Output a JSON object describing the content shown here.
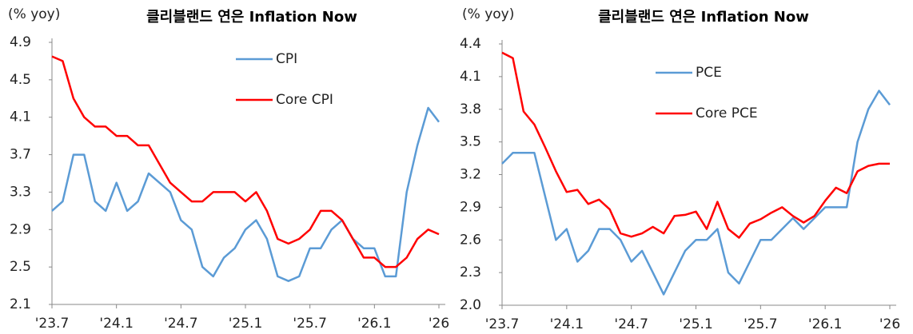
{
  "chart_data": [
    {
      "type": "line",
      "title": "클리블랜드 연은 Inflation Now",
      "y_label": "(% yoy)",
      "categories": [
        "'23.7",
        null,
        null,
        null,
        null,
        null,
        "'24.1",
        null,
        null,
        null,
        null,
        null,
        "'24.7",
        null,
        null,
        null,
        null,
        null,
        "'25.1",
        null,
        null,
        null,
        null,
        null,
        "'25.7",
        null,
        null,
        null,
        null,
        null,
        "'26.1",
        null,
        null,
        null,
        null,
        null,
        "'26"
      ],
      "series": [
        {
          "name": "CPI",
          "color": "#5b9bd5",
          "values": [
            3.1,
            3.2,
            3.7,
            3.7,
            3.2,
            3.1,
            3.4,
            3.1,
            3.2,
            3.5,
            3.4,
            3.3,
            3.0,
            2.9,
            2.5,
            2.4,
            2.6,
            2.7,
            2.9,
            3.0,
            2.8,
            2.4,
            2.35,
            2.4,
            2.7,
            2.7,
            2.9,
            3.0,
            2.8,
            2.7,
            2.7,
            2.4,
            2.4,
            3.3,
            3.8,
            4.2,
            4.05
          ]
        },
        {
          "name": "Core CPI",
          "color": "#ff0000",
          "values": [
            4.75,
            4.7,
            4.3,
            4.1,
            4.0,
            4.0,
            3.9,
            3.9,
            3.8,
            3.8,
            3.6,
            3.4,
            3.3,
            3.2,
            3.2,
            3.3,
            3.3,
            3.3,
            3.2,
            3.3,
            3.1,
            2.8,
            2.75,
            2.8,
            2.9,
            3.1,
            3.1,
            3.0,
            2.8,
            2.6,
            2.6,
            2.5,
            2.5,
            2.6,
            2.8,
            2.9,
            2.85
          ]
        }
      ],
      "ylim": [
        2.1,
        4.9
      ],
      "yticks": [
        2.1,
        2.5,
        2.9,
        3.3,
        3.7,
        4.1,
        4.5,
        4.9
      ],
      "grid": false
    },
    {
      "type": "line",
      "title": "클리블랜드 연은 Inflation Now",
      "y_label": "(% yoy)",
      "categories": [
        "'23.7",
        null,
        null,
        null,
        null,
        null,
        "'24.1",
        null,
        null,
        null,
        null,
        null,
        "'24.7",
        null,
        null,
        null,
        null,
        null,
        "'25.1",
        null,
        null,
        null,
        null,
        null,
        "'25.7",
        null,
        null,
        null,
        null,
        null,
        "'26.1",
        null,
        null,
        null,
        null,
        null,
        "'26"
      ],
      "series": [
        {
          "name": "PCE",
          "color": "#5b9bd5",
          "values": [
            3.3,
            3.4,
            3.4,
            3.4,
            3.0,
            2.6,
            2.7,
            2.4,
            2.5,
            2.7,
            2.7,
            2.6,
            2.4,
            2.5,
            2.3,
            2.1,
            2.3,
            2.5,
            2.6,
            2.6,
            2.7,
            2.3,
            2.2,
            2.4,
            2.6,
            2.6,
            2.7,
            2.8,
            2.7,
            2.8,
            2.9,
            2.9,
            2.9,
            3.5,
            3.8,
            3.97,
            3.84
          ]
        },
        {
          "name": "Core PCE",
          "color": "#ff0000",
          "values": [
            4.32,
            4.27,
            3.78,
            3.66,
            3.45,
            3.23,
            3.04,
            3.06,
            2.93,
            2.97,
            2.88,
            2.66,
            2.63,
            2.66,
            2.72,
            2.66,
            2.82,
            2.83,
            2.86,
            2.7,
            2.95,
            2.7,
            2.62,
            2.75,
            2.79,
            2.85,
            2.9,
            2.82,
            2.76,
            2.82,
            2.96,
            3.08,
            3.03,
            3.23,
            3.28,
            3.3,
            3.3
          ]
        }
      ],
      "ylim": [
        2.0,
        4.4
      ],
      "yticks": [
        {
          "value": 2.0,
          "label": "2.0"
        },
        2.3,
        2.6,
        2.9,
        3.2,
        3.5,
        3.8,
        4.1,
        4.4
      ],
      "grid": false
    }
  ]
}
